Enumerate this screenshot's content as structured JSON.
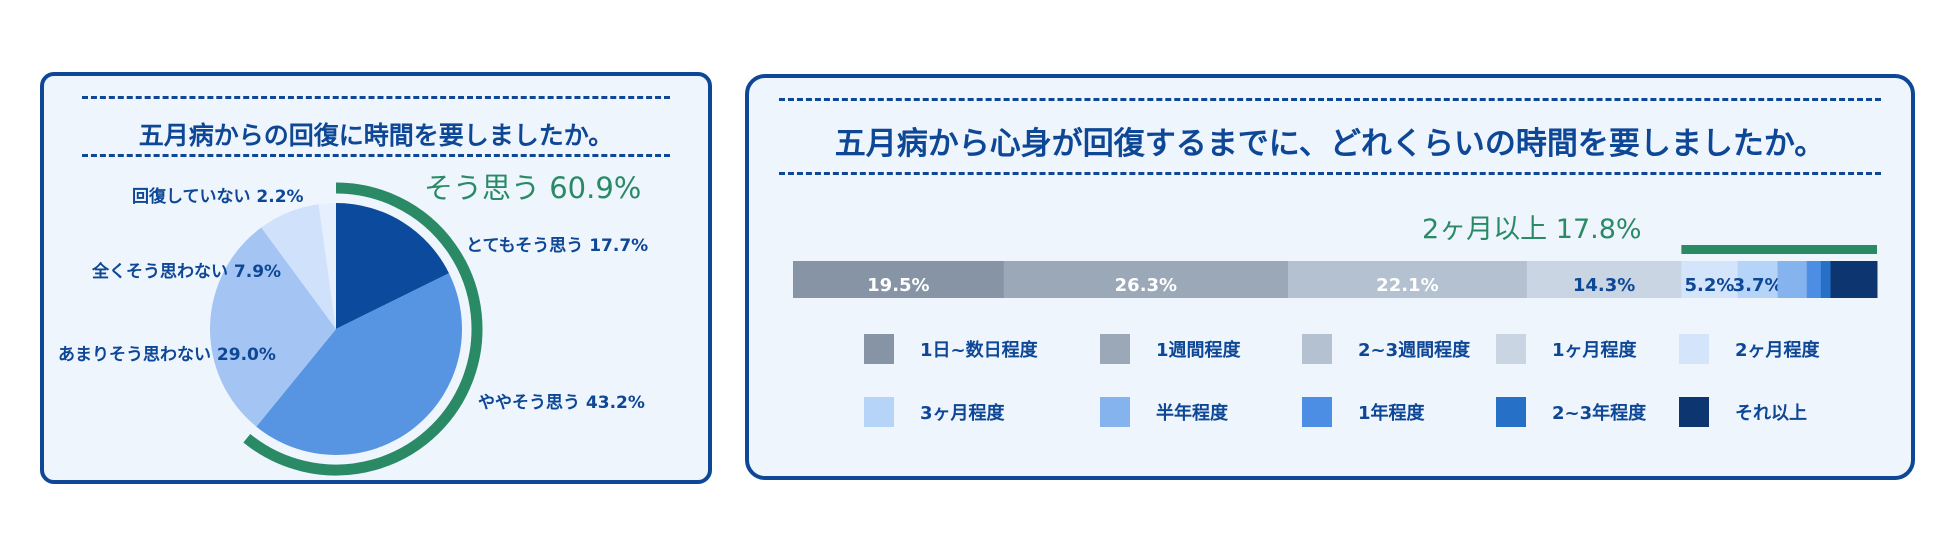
{
  "left": {
    "title": "五月病からの回復に時間を要しましたか。",
    "agree_label": "そう思う 60.9%"
  },
  "right": {
    "title": "五月病から心身が回復するまでに、どれくらいの時間を要しましたか。",
    "bracket_label": "2ヶ月以上 17.8%"
  },
  "chart_data": [
    {
      "type": "pie",
      "title": "五月病からの回復に時間を要しましたか。",
      "slices": [
        {
          "label": "とてもそう思う",
          "value": 17.7,
          "display": "とてもそう思う 17.7%",
          "color": "#0b4a9c"
        },
        {
          "label": "ややそう思う",
          "value": 43.2,
          "display": "ややそう思う 43.2%",
          "color": "#5795e3"
        },
        {
          "label": "あまりそう思わない",
          "value": 29.0,
          "display": "あまりそう思わない 29.0%",
          "color": "#a4c5f4"
        },
        {
          "label": "全くそう思わない",
          "value": 7.9,
          "display": "全くそう思わない 7.9%",
          "color": "#cfe1fb"
        },
        {
          "label": "回復していない",
          "value": 2.2,
          "display": "回復していない 2.2%",
          "color": "#e6f0fd"
        }
      ],
      "annotation": {
        "text": "そう思う 60.9%",
        "value": 60.9,
        "color": "#2a8a66"
      }
    },
    {
      "type": "bar",
      "orientation": "horizontal-stacked",
      "title": "五月病から心身が回復するまでに、どれくらいの時間を要しましたか。",
      "segments": [
        {
          "label": "1日~数日程度",
          "value": 19.5,
          "display": "19.5%",
          "color": "#8794a5",
          "text_color": "#ffffff"
        },
        {
          "label": "1週間程度",
          "value": 26.3,
          "display": "26.3%",
          "color": "#9aa8b8",
          "text_color": "#ffffff"
        },
        {
          "label": "2~3週間程度",
          "value": 22.1,
          "display": "22.1%",
          "color": "#b4c1d0",
          "text_color": "#ffffff"
        },
        {
          "label": "1ヶ月程度",
          "value": 14.3,
          "display": "14.3%",
          "color": "#c9d5e3",
          "text_color": "#0e4795"
        },
        {
          "label": "2ヶ月程度",
          "value": 5.2,
          "display": "5.2%",
          "color": "#d4e5fb",
          "text_color": "#0e4795"
        },
        {
          "label": "3ヶ月程度",
          "value": 3.7,
          "display": "3.7%",
          "color": "#b6d4f8",
          "text_color": "#0e4795"
        },
        {
          "label": "半年程度",
          "value": 2.7,
          "display": "",
          "color": "#85b3ee",
          "text_color": "#0e4795"
        },
        {
          "label": "1年程度",
          "value": 1.3,
          "display": "",
          "color": "#4d8ee5",
          "text_color": "#0e4795"
        },
        {
          "label": "2~3年程度",
          "value": 0.9,
          "display": "",
          "color": "#2770c8",
          "text_color": "#0e4795"
        },
        {
          "label": "それ以上",
          "value": 4.3,
          "display": "",
          "color": "#0d3570",
          "text_color": "#ffffff"
        }
      ],
      "annotation": {
        "text": "2ヶ月以上 17.8%",
        "value": 17.8,
        "color": "#2a8a66"
      }
    }
  ]
}
